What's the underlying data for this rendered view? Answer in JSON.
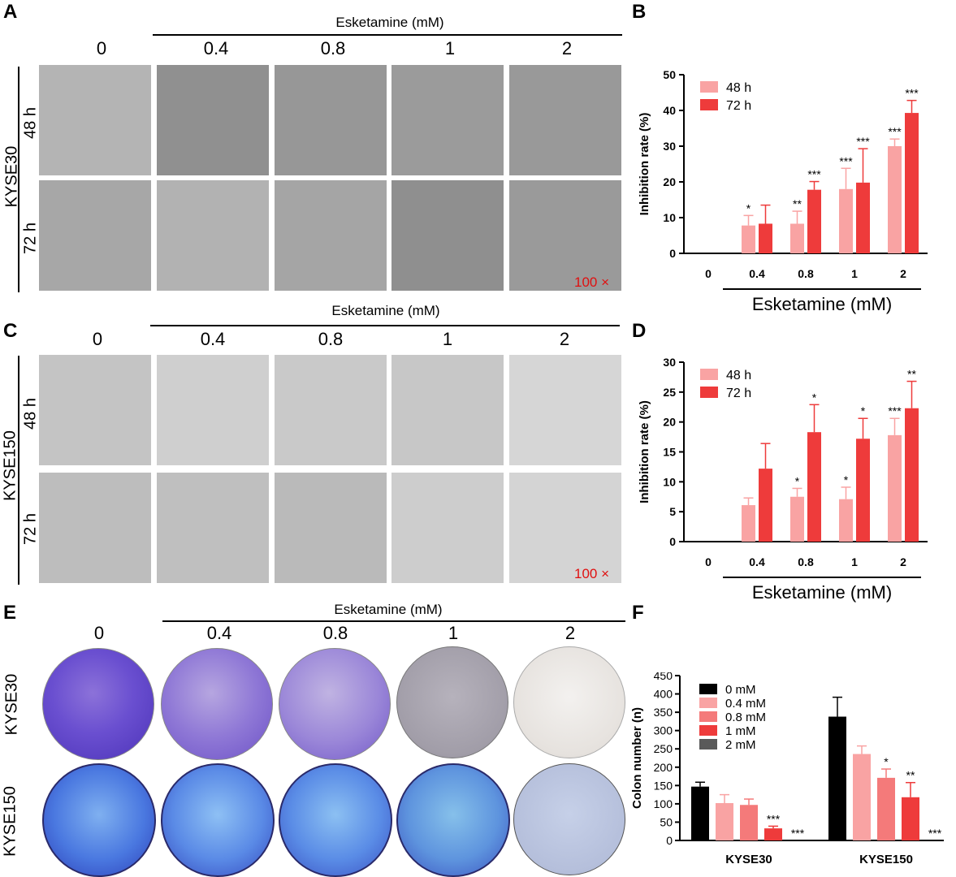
{
  "panels": {
    "A": {
      "letter": "A",
      "header": "Esketamine (mM)",
      "concentrations": [
        "0",
        "0.4",
        "0.8",
        "1",
        "2"
      ],
      "cell_line": "KYSE30",
      "rows": [
        "48 h",
        "72 h"
      ],
      "magnification": "100 ×"
    },
    "C": {
      "letter": "C",
      "header": "Esketamine (mM)",
      "concentrations": [
        "0",
        "0.4",
        "0.8",
        "1",
        "2"
      ],
      "cell_line": "KYSE150",
      "rows": [
        "48 h",
        "72 h"
      ],
      "magnification": "100 ×"
    },
    "E": {
      "letter": "E",
      "header": "Esketamine (mM)",
      "concentrations": [
        "0",
        "0.4",
        "0.8",
        "1",
        "2"
      ],
      "rows": [
        "KYSE30",
        "KYSE150"
      ]
    }
  },
  "colors": {
    "black": "#000000",
    "light_pink": "#f9a3a3",
    "salmon": "#f47a7a",
    "red": "#ee3b3b",
    "gray": "#5a5a5a",
    "magnification": "#e01010",
    "crystal_violet": "#5b3fd0",
    "kyse150_plate": "#4a78e0"
  },
  "chart_data": [
    {
      "letter": "B",
      "type": "bar",
      "ylabel": "Inhibition rate (%)",
      "xlabel": "Esketamine (mM)",
      "categories": [
        "0",
        "0.4",
        "0.8",
        "1",
        "2"
      ],
      "ylim": [
        0,
        50
      ],
      "yticks": [
        "0",
        "10",
        "20",
        "30",
        "40",
        "50"
      ],
      "legend_position": "top-left",
      "series": [
        {
          "name": "48 h",
          "color": "#f9a3a3",
          "values": [
            0,
            7.8,
            8.3,
            18.0,
            30.0
          ],
          "errors": [
            0,
            2.8,
            3.5,
            5.8,
            2.0
          ],
          "sig": [
            "",
            "*",
            "**",
            "***",
            "***"
          ]
        },
        {
          "name": "72 h",
          "color": "#ee3b3b",
          "values": [
            0,
            8.3,
            17.8,
            19.8,
            39.3
          ],
          "errors": [
            0,
            5.2,
            2.3,
            9.5,
            3.5
          ],
          "sig": [
            "",
            "",
            "***",
            "***",
            "***"
          ]
        }
      ]
    },
    {
      "letter": "D",
      "type": "bar",
      "ylabel": "Inhibition rate (%)",
      "xlabel": "Esketamine (mM)",
      "categories": [
        "0",
        "0.4",
        "0.8",
        "1",
        "2"
      ],
      "ylim": [
        0,
        30
      ],
      "yticks": [
        "0",
        "5",
        "10",
        "15",
        "20",
        "25",
        "30"
      ],
      "legend_position": "top-left",
      "series": [
        {
          "name": "48 h",
          "color": "#f9a3a3",
          "values": [
            0,
            6.1,
            7.5,
            7.1,
            17.8
          ],
          "errors": [
            0,
            1.2,
            1.4,
            2.0,
            2.8
          ],
          "sig": [
            "",
            "",
            "*",
            "*",
            "***"
          ]
        },
        {
          "name": "72 h",
          "color": "#ee3b3b",
          "values": [
            0,
            12.2,
            18.3,
            17.2,
            22.3
          ],
          "errors": [
            0,
            4.2,
            4.6,
            3.4,
            4.5
          ],
          "sig": [
            "",
            "",
            "*",
            "*",
            "**"
          ]
        }
      ]
    },
    {
      "letter": "F",
      "type": "bar",
      "ylabel": "Colon number (n)",
      "categories": [
        "KYSE30",
        "KYSE150"
      ],
      "ylim": [
        0,
        450
      ],
      "yticks": [
        "0",
        "50",
        "100",
        "150",
        "200",
        "250",
        "300",
        "350",
        "400",
        "450"
      ],
      "legend_position": "top-left",
      "series": [
        {
          "name": "0 mM",
          "color": "#000000",
          "values": [
            147,
            338
          ],
          "errors": [
            12,
            53
          ],
          "sig": [
            "",
            ""
          ]
        },
        {
          "name": "0.4 mM",
          "color": "#f9a3a3",
          "values": [
            102,
            236
          ],
          "errors": [
            23,
            22
          ],
          "sig": [
            "",
            ""
          ]
        },
        {
          "name": "0.8 mM",
          "color": "#f47a7a",
          "values": [
            97,
            171
          ],
          "errors": [
            16,
            24
          ],
          "sig": [
            "",
            "*"
          ]
        },
        {
          "name": "1 mM",
          "color": "#ee3b3b",
          "values": [
            33,
            118
          ],
          "errors": [
            6,
            40
          ],
          "sig": [
            "***",
            "**"
          ]
        },
        {
          "name": "2 mM",
          "color": "#5a5a5a",
          "values": [
            0,
            0
          ],
          "errors": [
            0,
            0
          ],
          "sig": [
            "***",
            "***"
          ]
        }
      ]
    }
  ]
}
